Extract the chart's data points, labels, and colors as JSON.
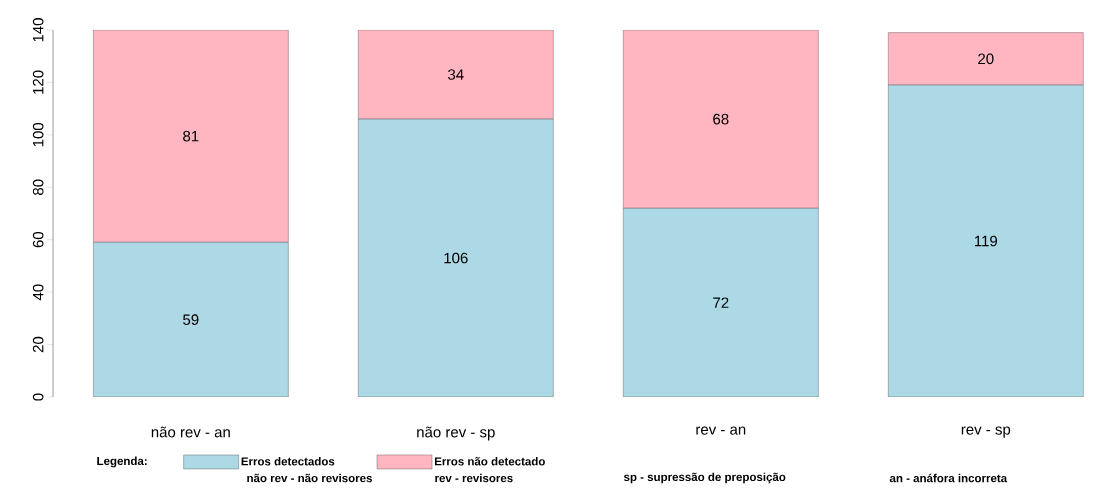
{
  "chart_data": {
    "type": "bar",
    "stacked": true,
    "categories": [
      "não rev - an",
      "não rev - sp",
      "rev - an",
      "rev - sp"
    ],
    "series": [
      {
        "name": "Erros detectados",
        "color": "#add8e6",
        "values": [
          59,
          106,
          72,
          119
        ]
      },
      {
        "name": "Erros não detectado",
        "color": "#ffb6c1",
        "values": [
          81,
          34,
          68,
          20
        ]
      }
    ],
    "ylim": [
      0,
      140
    ],
    "yticks": [
      0,
      20,
      40,
      60,
      80,
      100,
      120,
      140
    ],
    "data_labels": true,
    "legend": "bottom",
    "legend_title": "Legenda:",
    "annotations": [
      "não rev - não revisores",
      "rev - revisores",
      "sp - supressão de preposição",
      "an - anáfora incorreta"
    ]
  }
}
